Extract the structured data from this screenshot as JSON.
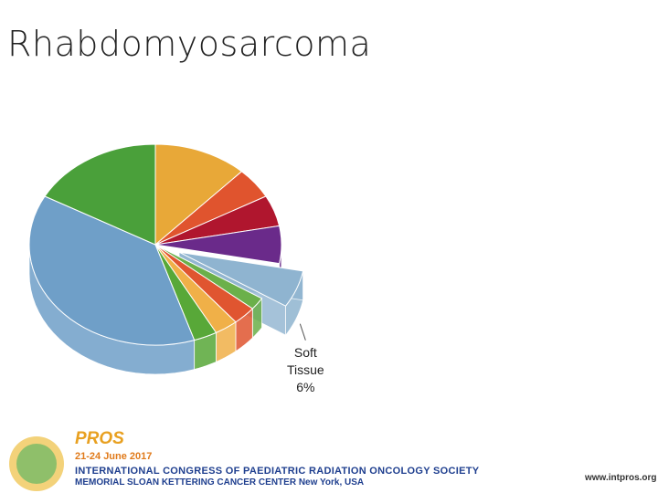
{
  "chart_data": {
    "type": "pie",
    "title": "Rhabdomyosarcoma",
    "categories": [
      null,
      null,
      null,
      null,
      "Soft Tissue",
      null,
      null,
      null,
      null,
      null,
      null
    ],
    "values": [
      12,
      5,
      5,
      6,
      6,
      2,
      3,
      3,
      3,
      38,
      17
    ],
    "value_labels": [
      null,
      null,
      null,
      null,
      "6%",
      null,
      null,
      null,
      null,
      null,
      null
    ],
    "colors": [
      "#e8a838",
      "#e0542e",
      "#b0162e",
      "#6a2a8a",
      "#8fb4d0",
      "#6bb04a",
      "#e05530",
      "#f0b048",
      "#58a838",
      "#6f9fc8",
      "#4aa03a"
    ],
    "exploded": [
      false,
      false,
      false,
      false,
      true,
      false,
      false,
      false,
      false,
      false,
      false
    ]
  },
  "footer": {
    "logo": "PROS",
    "date": "21-24 June 2017",
    "congress": "INTERNATIONAL CONGRESS OF PAEDIATRIC RADIATION ONCOLOGY SOCIETY",
    "venue": "MEMORIAL SLOAN KETTERING CANCER CENTER New York, USA",
    "url": "www.intpros.org"
  }
}
